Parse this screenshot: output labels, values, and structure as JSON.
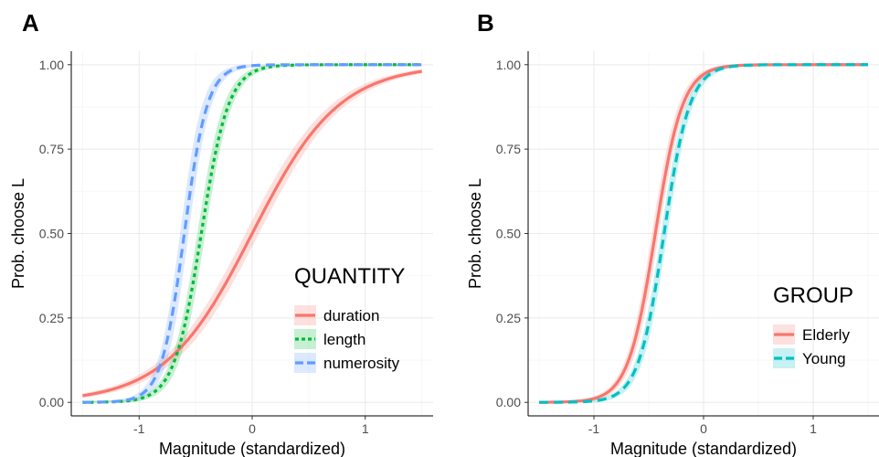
{
  "chart_data": [
    {
      "type": "line",
      "panel": "A",
      "xlabel": "Magnitude (standardized)",
      "ylabel": "Prob. choose L",
      "xlim": [
        -1.6,
        1.6
      ],
      "ylim": [
        -0.04,
        1.04
      ],
      "x_ticks": [
        -1,
        0,
        1
      ],
      "x_tick_labels": [
        "-1",
        "0",
        "1"
      ],
      "y_ticks": [
        0,
        0.25,
        0.5,
        0.75,
        1
      ],
      "y_tick_labels": [
        "0.00",
        "0.25",
        "0.50",
        "0.75",
        "1.00"
      ],
      "grid": true,
      "legend": {
        "title": "QUANTITY",
        "position": "bottom-right"
      },
      "x_range": [
        -1.5,
        1.5
      ],
      "series": [
        {
          "name": "duration",
          "color": "#F8766D",
          "dash": "solid",
          "midpoint": 0.0,
          "slope": 2.6,
          "band": 0.035
        },
        {
          "name": "length",
          "color": "#00BA38",
          "dash": "dotted",
          "midpoint": -0.45,
          "slope": 8.3,
          "band": 0.07
        },
        {
          "name": "numerosity",
          "color": "#619CFF",
          "dash": "dashed",
          "midpoint": -0.6,
          "slope": 9.8,
          "band": 0.09
        }
      ]
    },
    {
      "type": "line",
      "panel": "B",
      "xlabel": "Magnitude (standardized)",
      "ylabel": "Prob. choose L",
      "xlim": [
        -1.6,
        1.6
      ],
      "ylim": [
        -0.04,
        1.04
      ],
      "x_ticks": [
        -1,
        0,
        1
      ],
      "x_tick_labels": [
        "-1",
        "0",
        "1"
      ],
      "y_ticks": [
        0,
        0.25,
        0.5,
        0.75,
        1
      ],
      "y_tick_labels": [
        "0.00",
        "0.25",
        "0.50",
        "0.75",
        "1.00"
      ],
      "grid": true,
      "legend": {
        "title": "GROUP",
        "position": "bottom-right"
      },
      "x_range": [
        -1.5,
        1.5
      ],
      "series": [
        {
          "name": "Elderly",
          "color": "#F8766D",
          "dash": "solid",
          "midpoint": -0.44,
          "slope": 8.0,
          "band": 0.06
        },
        {
          "name": "Young",
          "color": "#00BFC4",
          "dash": "dashed",
          "midpoint": -0.36,
          "slope": 8.5,
          "band": 0.06
        }
      ]
    }
  ]
}
